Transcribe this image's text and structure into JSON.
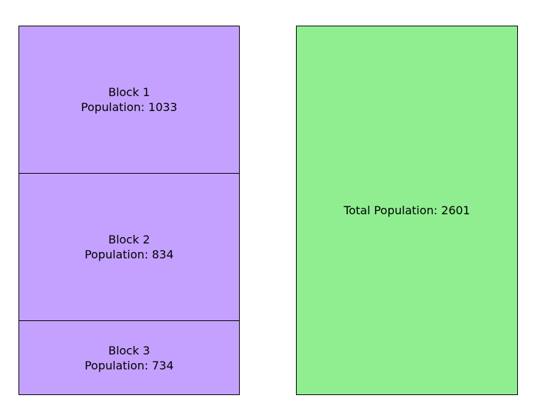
{
  "colors": {
    "block_fill": "#c4a1ff",
    "total_fill": "#90ee90",
    "border": "#000000",
    "text": "#000000",
    "background": "#ffffff"
  },
  "blocks": [
    {
      "name": "Block 1",
      "population_text": "Population: 1033",
      "population": 1033
    },
    {
      "name": "Block 2",
      "population_text": "Population: 834",
      "population": 834
    },
    {
      "name": "Block 3",
      "population_text": "Population: 734",
      "population": 734
    }
  ],
  "total": {
    "label": "Total Population: 2601",
    "population": 2601
  }
}
